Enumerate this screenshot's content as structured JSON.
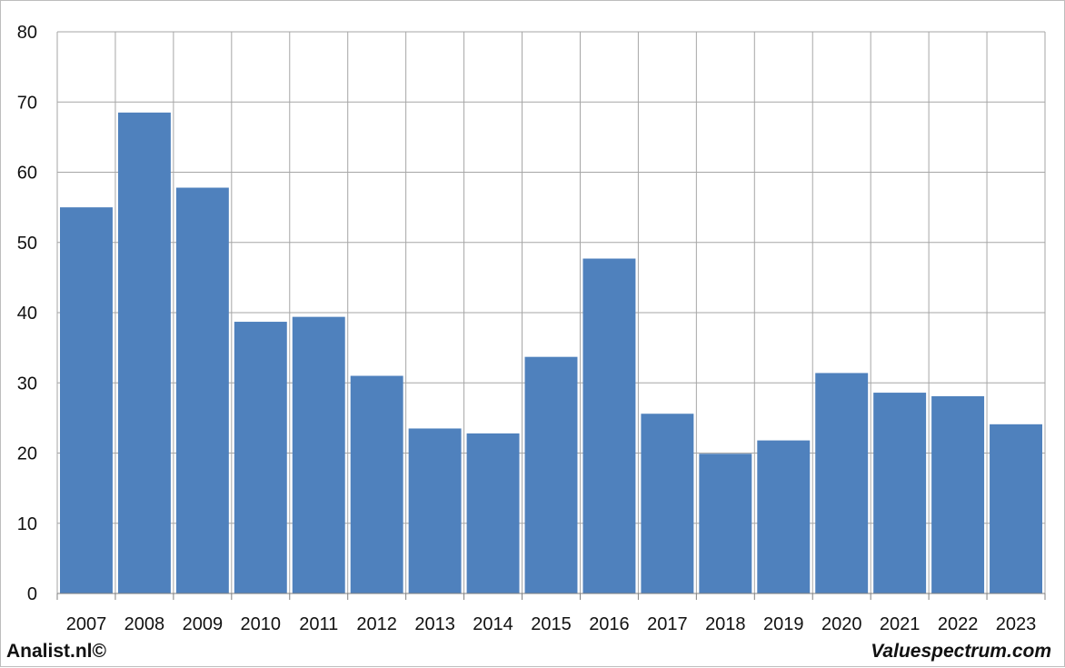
{
  "colors": {
    "bar": "#4f81bd",
    "grid": "#a6a6a6",
    "axis": "#808080",
    "background": "#ffffff"
  },
  "footer": {
    "left": "Analist.nl©",
    "right": "Valuespectrum.com"
  },
  "chart_data": {
    "type": "bar",
    "categories": [
      "2007",
      "2008",
      "2009",
      "2010",
      "2011",
      "2012",
      "2013",
      "2014",
      "2015",
      "2016",
      "2017",
      "2018",
      "2019",
      "2020",
      "2021",
      "2022",
      "2023"
    ],
    "values": [
      55.0,
      68.5,
      57.8,
      38.7,
      39.4,
      31.0,
      23.5,
      22.8,
      33.7,
      47.7,
      25.6,
      19.9,
      21.8,
      31.4,
      28.6,
      28.1,
      24.1
    ],
    "ylim": [
      0,
      80
    ],
    "yticks": [
      0,
      10,
      20,
      30,
      40,
      50,
      60,
      70,
      80
    ],
    "grid": true,
    "title": "",
    "xlabel": "",
    "ylabel": ""
  }
}
